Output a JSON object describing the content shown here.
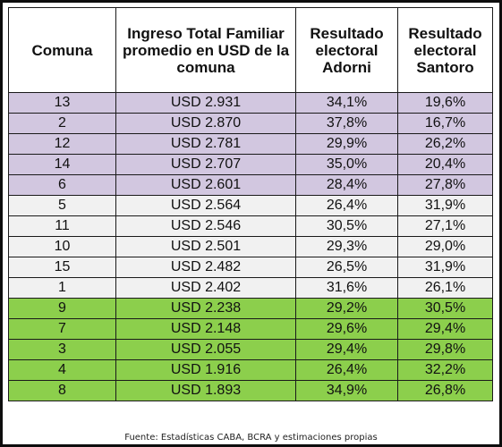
{
  "colors": {
    "purple_rows": "#d2c7e0",
    "gray_rows": "#f1f1f1",
    "green_rows": "#8ccf4c",
    "border": "#1a1a1a"
  },
  "table": {
    "headers": [
      "Comuna",
      "Ingreso Total Familiar promedio en USD de la comuna",
      "Resultado electoral Adorni",
      "Resultado electoral Santoro"
    ],
    "rows": [
      {
        "group": "purple",
        "cells": [
          "13",
          "USD 2.931",
          "34,1%",
          "19,6%"
        ]
      },
      {
        "group": "purple",
        "cells": [
          "2",
          "USD 2.870",
          "37,8%",
          "16,7%"
        ]
      },
      {
        "group": "purple",
        "cells": [
          "12",
          "USD 2.781",
          "29,9%",
          "26,2%"
        ]
      },
      {
        "group": "purple",
        "cells": [
          "14",
          "USD 2.707",
          "35,0%",
          "20,4%"
        ]
      },
      {
        "group": "purple",
        "cells": [
          "6",
          "USD 2.601",
          "28,4%",
          "27,8%"
        ]
      },
      {
        "group": "gray",
        "cells": [
          "5",
          "USD 2.564",
          "26,4%",
          "31,9%"
        ]
      },
      {
        "group": "gray",
        "cells": [
          "11",
          "USD 2.546",
          "30,5%",
          "27,1%"
        ]
      },
      {
        "group": "gray",
        "cells": [
          "10",
          "USD 2.501",
          "29,3%",
          "29,0%"
        ]
      },
      {
        "group": "gray",
        "cells": [
          "15",
          "USD 2.482",
          "26,5%",
          "31,9%"
        ]
      },
      {
        "group": "gray",
        "cells": [
          "1",
          "USD 2.402",
          "31,6%",
          "26,1%"
        ]
      },
      {
        "group": "green",
        "cells": [
          "9",
          "USD 2.238",
          "29,2%",
          "30,5%"
        ]
      },
      {
        "group": "green",
        "cells": [
          "7",
          "USD 2.148",
          "29,6%",
          "29,4%"
        ]
      },
      {
        "group": "green",
        "cells": [
          "3",
          "USD 2.055",
          "29,4%",
          "29,8%"
        ]
      },
      {
        "group": "green",
        "cells": [
          "4",
          "USD 1.916",
          "26,4%",
          "32,2%"
        ]
      },
      {
        "group": "green",
        "cells": [
          "8",
          "USD 1.893",
          "34,9%",
          "26,8%"
        ]
      }
    ]
  },
  "source": "Fuente: Estadísticas CABA, BCRA y estimaciones propias"
}
